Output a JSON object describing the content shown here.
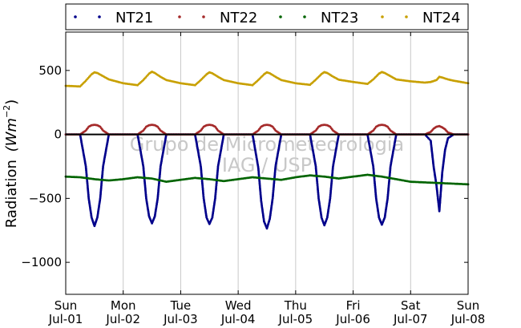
{
  "chart_data": {
    "type": "scatter",
    "ylabel": "Radiation",
    "ylabel_math": "(Wm",
    "ylabel_exp": "−2",
    "ylabel_close": ")",
    "ylim": [
      -1250,
      800
    ],
    "yticks": [
      500,
      0,
      -500,
      -1000
    ],
    "ytick_labels": [
      "500",
      "0",
      "−500",
      "−1000"
    ],
    "xlim": [
      0,
      7
    ],
    "xticks": [
      {
        "day": "Sun",
        "date": "Jul-01",
        "x": 0
      },
      {
        "day": "Mon",
        "date": "Jul-02",
        "x": 1
      },
      {
        "day": "Tue",
        "date": "Jul-03",
        "x": 2
      },
      {
        "day": "Wed",
        "date": "Jul-04",
        "x": 3
      },
      {
        "day": "Thu",
        "date": "Jul-05",
        "x": 4
      },
      {
        "day": "Fri",
        "date": "Jul-06",
        "x": 5
      },
      {
        "day": "Sat",
        "date": "Jul-07",
        "x": 6
      },
      {
        "day": "Sun",
        "date": "Jul-08",
        "x": 7
      }
    ],
    "grid": "vertical",
    "legend_placement": "top",
    "watermark": [
      "Grupo de Micrometeorologia",
      "IAG / USP"
    ],
    "series": [
      {
        "name": "NT21",
        "color": "#00008b",
        "description": "daily minimum near -710 W/m2 around midday, 0 at night",
        "daily_min": [
          -715,
          -695,
          -700,
          -735,
          -710,
          -705,
          -600
        ],
        "x": [
          0.0,
          0.25,
          0.35,
          0.4,
          0.45,
          0.5,
          0.55,
          0.6,
          0.65,
          0.75,
          1.0,
          1.25,
          1.35,
          1.4,
          1.45,
          1.5,
          1.55,
          1.6,
          1.65,
          1.75,
          2.0,
          2.25,
          2.35,
          2.4,
          2.45,
          2.5,
          2.55,
          2.6,
          2.65,
          2.75,
          3.0,
          3.25,
          3.35,
          3.4,
          3.45,
          3.5,
          3.55,
          3.6,
          3.65,
          3.75,
          4.0,
          4.25,
          4.35,
          4.4,
          4.45,
          4.5,
          4.55,
          4.6,
          4.65,
          4.75,
          5.0,
          5.25,
          5.35,
          5.4,
          5.45,
          5.5,
          5.55,
          5.6,
          5.65,
          5.75,
          6.0,
          6.25,
          6.35,
          6.4,
          6.45,
          6.5,
          6.55,
          6.6,
          6.65,
          6.75,
          7.0
        ],
        "y": [
          0,
          0,
          -250,
          -500,
          -650,
          -715,
          -650,
          -500,
          -250,
          0,
          0,
          0,
          -250,
          -500,
          -640,
          -695,
          -640,
          -500,
          -250,
          0,
          0,
          0,
          -250,
          -500,
          -650,
          -700,
          -650,
          -500,
          -250,
          0,
          0,
          0,
          -260,
          -520,
          -680,
          -735,
          -660,
          -500,
          -250,
          0,
          0,
          0,
          -250,
          -500,
          -650,
          -710,
          -650,
          -500,
          -250,
          0,
          0,
          0,
          -250,
          -500,
          -650,
          -705,
          -650,
          -500,
          -250,
          0,
          0,
          0,
          -50,
          -250,
          -400,
          -600,
          -300,
          -120,
          -30,
          0,
          0
        ]
      },
      {
        "name": "NT22",
        "color": "#a52a2a",
        "description": "daily maximum near 75 W/m2 around midday",
        "daily_max": [
          75,
          75,
          75,
          75,
          75,
          75,
          65
        ],
        "x": [
          0.0,
          0.25,
          0.35,
          0.4,
          0.45,
          0.5,
          0.55,
          0.6,
          0.65,
          0.75,
          1.0,
          1.25,
          1.35,
          1.4,
          1.45,
          1.5,
          1.55,
          1.6,
          1.65,
          1.75,
          2.0,
          2.25,
          2.35,
          2.4,
          2.45,
          2.5,
          2.55,
          2.6,
          2.65,
          2.75,
          3.0,
          3.25,
          3.35,
          3.4,
          3.45,
          3.5,
          3.55,
          3.6,
          3.65,
          3.75,
          4.0,
          4.25,
          4.35,
          4.4,
          4.45,
          4.5,
          4.55,
          4.6,
          4.65,
          4.75,
          5.0,
          5.25,
          5.35,
          5.4,
          5.45,
          5.5,
          5.55,
          5.6,
          5.65,
          5.75,
          6.0,
          6.25,
          6.35,
          6.4,
          6.45,
          6.5,
          6.55,
          6.6,
          6.65,
          6.75,
          7.0
        ],
        "y": [
          0,
          0,
          30,
          60,
          72,
          75,
          72,
          60,
          30,
          0,
          0,
          0,
          30,
          60,
          72,
          75,
          72,
          60,
          30,
          0,
          0,
          0,
          30,
          60,
          72,
          75,
          72,
          60,
          30,
          0,
          0,
          0,
          30,
          60,
          72,
          75,
          72,
          60,
          30,
          0,
          0,
          0,
          30,
          60,
          72,
          75,
          72,
          60,
          30,
          0,
          0,
          0,
          30,
          60,
          72,
          75,
          72,
          60,
          30,
          0,
          0,
          0,
          20,
          45,
          60,
          65,
          55,
          40,
          15,
          0,
          0
        ]
      },
      {
        "name": "NT23",
        "color": "#006400",
        "description": "longwave-like series oscillating between about -380 and -310 W/m2",
        "x": [
          0.0,
          0.25,
          0.5,
          0.75,
          1.0,
          1.25,
          1.5,
          1.75,
          2.0,
          2.25,
          2.5,
          2.75,
          3.0,
          3.25,
          3.5,
          3.75,
          4.0,
          4.25,
          4.5,
          4.75,
          5.0,
          5.25,
          5.5,
          5.75,
          6.0,
          6.25,
          6.5,
          6.75,
          7.0
        ],
        "y": [
          -330,
          -335,
          -350,
          -360,
          -350,
          -335,
          -345,
          -370,
          -355,
          -340,
          -350,
          -365,
          -350,
          -335,
          -345,
          -355,
          -335,
          -320,
          -330,
          -345,
          -330,
          -315,
          -330,
          -350,
          -370,
          -375,
          -380,
          -385,
          -390
        ]
      },
      {
        "name": "NT24",
        "color": "#c8a000",
        "description": "series oscillating between about 375 and 490 W/m2 with daily peaks",
        "x": [
          0.0,
          0.25,
          0.35,
          0.45,
          0.5,
          0.55,
          0.65,
          0.75,
          1.0,
          1.25,
          1.35,
          1.45,
          1.5,
          1.55,
          1.65,
          1.75,
          2.0,
          2.25,
          2.35,
          2.45,
          2.5,
          2.55,
          2.65,
          2.75,
          3.0,
          3.25,
          3.35,
          3.45,
          3.5,
          3.55,
          3.65,
          3.75,
          4.0,
          4.25,
          4.35,
          4.45,
          4.5,
          4.55,
          4.65,
          4.75,
          5.0,
          5.25,
          5.35,
          5.45,
          5.5,
          5.55,
          5.65,
          5.75,
          6.0,
          6.25,
          6.35,
          6.45,
          6.5,
          6.55,
          6.65,
          6.75,
          7.0
        ],
        "y": [
          380,
          375,
          420,
          470,
          485,
          480,
          455,
          430,
          400,
          385,
          425,
          475,
          490,
          480,
          450,
          425,
          400,
          385,
          425,
          470,
          485,
          478,
          450,
          425,
          400,
          385,
          425,
          470,
          485,
          478,
          450,
          425,
          400,
          388,
          428,
          472,
          487,
          480,
          452,
          428,
          410,
          395,
          430,
          475,
          488,
          480,
          455,
          430,
          415,
          405,
          410,
          425,
          450,
          445,
          430,
          420,
          400
        ]
      }
    ]
  }
}
